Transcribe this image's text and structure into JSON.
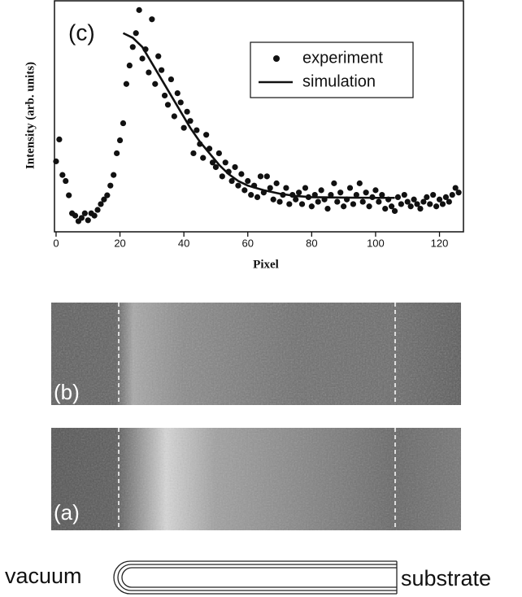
{
  "chart_data": {
    "type": "scatter",
    "annotation": "(c)",
    "x_label": "Pixel",
    "y_label": "Intensity (arb. units)",
    "xlim": [
      -0.5,
      127.5
    ],
    "xticks": [
      0,
      20,
      40,
      60,
      80,
      100,
      120
    ],
    "ylim": [
      0,
      100
    ],
    "legend": "upper right",
    "series": [
      {
        "name": "experiment",
        "marker": "circle",
        "color": "#111111",
        "x": [
          0,
          1,
          2,
          3,
          4,
          5,
          6,
          7,
          8,
          9,
          10,
          11,
          12,
          13,
          14,
          15,
          16,
          17,
          18,
          19,
          20,
          21,
          22,
          23,
          24,
          25,
          26,
          27,
          28,
          29,
          30,
          31,
          32,
          33,
          34,
          35,
          36,
          37,
          38,
          39,
          40,
          41,
          42,
          43,
          44,
          45,
          46,
          47,
          48,
          49,
          50,
          51,
          52,
          53,
          54,
          55,
          56,
          57,
          58,
          59,
          60,
          61,
          62,
          63,
          64,
          65,
          66,
          67,
          68,
          69,
          70,
          71,
          72,
          73,
          74,
          75,
          76,
          77,
          78,
          79,
          80,
          81,
          82,
          83,
          84,
          85,
          86,
          87,
          88,
          89,
          90,
          91,
          92,
          93,
          94,
          95,
          96,
          97,
          98,
          99,
          100,
          101,
          102,
          103,
          104,
          105,
          106,
          107,
          108,
          109,
          110,
          111,
          112,
          113,
          114,
          115,
          116,
          117,
          118,
          119,
          120,
          121,
          122,
          123,
          124,
          125,
          126
        ],
        "values": [
          30.5,
          40,
          24.6,
          22,
          15.8,
          8,
          7,
          4.6,
          6,
          8,
          5,
          8,
          7,
          9.5,
          12,
          14,
          15.8,
          20,
          24.6,
          34,
          39.6,
          47,
          64,
          72,
          80,
          86,
          96,
          75,
          79,
          69,
          92,
          64,
          76,
          70,
          59,
          55,
          66,
          50,
          60,
          56,
          45,
          52,
          48,
          34,
          44,
          38,
          32,
          42,
          36,
          30,
          28,
          34,
          24,
          30,
          26,
          22,
          28,
          20,
          25,
          18,
          22,
          16,
          20,
          15,
          24,
          17,
          24,
          19,
          14,
          21,
          13,
          16,
          19,
          12,
          16,
          14,
          17,
          12,
          19,
          15,
          11,
          16,
          13,
          18,
          14,
          10,
          16,
          21,
          13,
          17,
          11,
          14,
          19,
          12,
          16,
          21,
          13,
          17,
          11,
          15,
          18,
          13,
          16,
          10,
          14,
          11,
          9,
          15,
          12,
          16,
          13,
          11,
          14,
          12,
          10,
          13,
          15,
          12,
          16,
          11,
          14,
          12,
          15,
          13,
          16,
          19,
          17
        ]
      },
      {
        "name": "simulation",
        "marker": "line",
        "color": "#111111",
        "x": [
          21,
          24,
          27,
          30,
          33,
          36,
          39,
          42,
          45,
          48,
          51,
          54,
          57,
          60,
          65,
          70,
          75,
          80,
          90,
          100,
          106
        ],
        "values": [
          86,
          84,
          80,
          73,
          66,
          59,
          52,
          45,
          39,
          34,
          29,
          25,
          22,
          20,
          18,
          16.5,
          15.5,
          15,
          14.8,
          14.7,
          14.7
        ]
      }
    ]
  },
  "panels": [
    "(b)",
    "(a)"
  ],
  "diagram": {
    "left_label": "vacuum",
    "right_label": "substrate"
  }
}
